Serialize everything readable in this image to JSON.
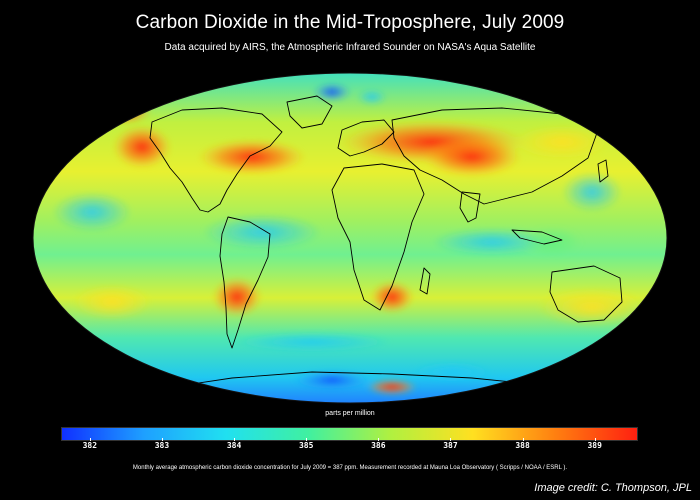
{
  "title": "Carbon Dioxide in the Mid-Troposphere, July 2009",
  "subtitle": "Data acquired by AIRS, the Atmospheric Infrared Sounder on NASA's Aqua Satellite",
  "colorbar": {
    "label": "parts per million",
    "min": 381.6,
    "max": 389.6,
    "ticks": [
      "382",
      "383",
      "384",
      "385",
      "386",
      "387",
      "388",
      "389"
    ],
    "colors": [
      "#1030ff",
      "#1ea0ff",
      "#20e0f0",
      "#40f0a0",
      "#b0f040",
      "#ffe020",
      "#ff8010",
      "#ff2010"
    ]
  },
  "footnote": "Monthly average atmospheric carbon dioxide concentration for July 2009 = 387 ppm. Measurement recorded at Mauna Loa Observatory ( Scripps / NOAA / ESRL ).",
  "credit": "Image credit:  C. Thompson, JPL"
}
